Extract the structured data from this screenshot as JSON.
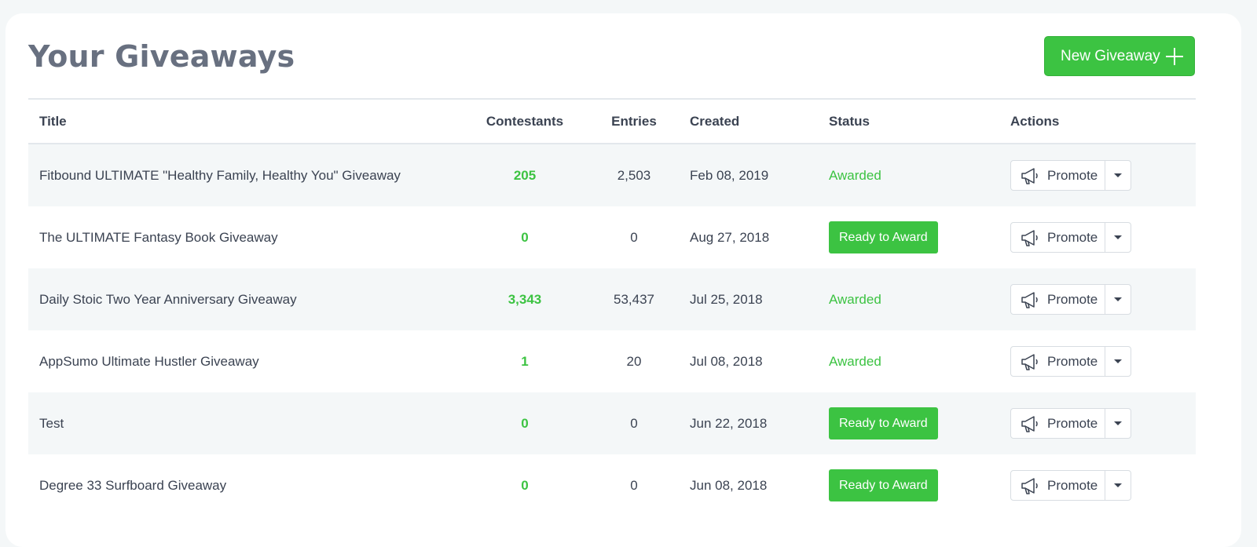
{
  "header": {
    "title": "Your Giveaways",
    "new_button_label": "New Giveaway",
    "new_button_icon": "plus-icon"
  },
  "table": {
    "columns": {
      "title": "Title",
      "contestants": "Contestants",
      "entries": "Entries",
      "created": "Created",
      "status": "Status",
      "actions": "Actions"
    },
    "rows": [
      {
        "title": "Fitbound ULTIMATE \"Healthy Family, Healthy You\" Giveaway",
        "contestants": "205",
        "entries": "2,503",
        "created": "Feb 08, 2019",
        "status": "Awarded",
        "action": "Promote"
      },
      {
        "title": "The ULTIMATE Fantasy Book Giveaway",
        "contestants": "0",
        "entries": "0",
        "created": "Aug 27, 2018",
        "status": "Ready to Award",
        "action": "Promote"
      },
      {
        "title": "Daily Stoic Two Year Anniversary Giveaway",
        "contestants": "3,343",
        "entries": "53,437",
        "created": "Jul 25, 2018",
        "status": "Awarded",
        "action": "Promote"
      },
      {
        "title": "AppSumo Ultimate Hustler Giveaway",
        "contestants": "1",
        "entries": "20",
        "created": "Jul 08, 2018",
        "status": "Awarded",
        "action": "Promote"
      },
      {
        "title": "Test",
        "contestants": "0",
        "entries": "0",
        "created": "Jun 22, 2018",
        "status": "Ready to Award",
        "action": "Promote"
      },
      {
        "title": "Degree 33 Surfboard Giveaway",
        "contestants": "0",
        "entries": "0",
        "created": "Jun 08, 2018",
        "status": "Ready to Award",
        "action": "Promote"
      }
    ]
  },
  "colors": {
    "accent_green": "#3cc342",
    "title_gray": "#687080",
    "row_alt_bg": "#f4f7f8"
  },
  "icons": {
    "promote": "megaphone-icon",
    "dropdown": "caret-down-icon"
  }
}
